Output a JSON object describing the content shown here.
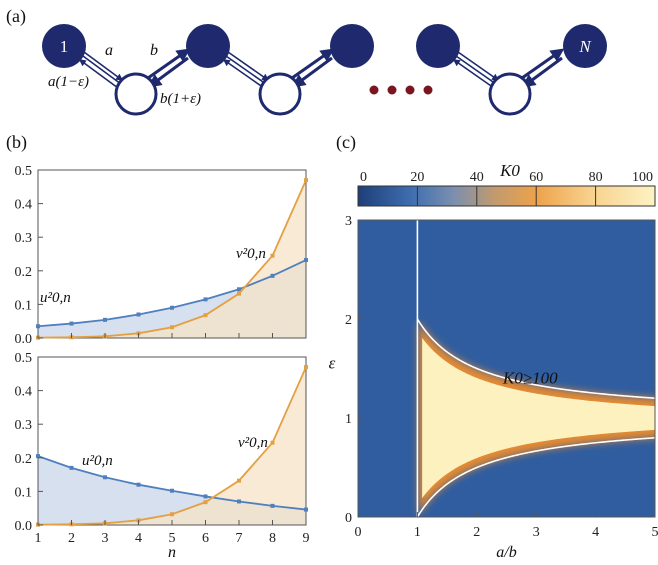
{
  "panel_labels": {
    "a": "(a)",
    "b": "(b)",
    "c": "(c)"
  },
  "colors": {
    "navy": "#1f2a6e",
    "blue_curve": "#4f7fbf",
    "orange_curve": "#e3a043",
    "blue_fill": "#c9d6ea",
    "orange_fill": "#f6e3c6",
    "heat_low": "#2f5da0",
    "heat_high": "#fdf1bf",
    "dots": "#7a1620"
  },
  "chain": {
    "first_node_label": "1",
    "last_node_label": "N",
    "hop_a": "a",
    "hop_b": "b",
    "hop_a_reverse": "a(1−ε)",
    "hop_b_reverse": "b(1+ε)"
  },
  "chart_data": [
    {
      "type": "area",
      "panel": "(b) top",
      "x": [
        1,
        2,
        3,
        4,
        5,
        6,
        7,
        8,
        9
      ],
      "ylim": [
        0,
        0.5
      ],
      "xlim": [
        1,
        9
      ],
      "yticks": [
        "0.0",
        "0.1",
        "0.2",
        "0.3",
        "0.4",
        "0.5"
      ],
      "series": [
        {
          "name": "u²0,n",
          "values": [
            0.035,
            0.043,
            0.054,
            0.07,
            0.09,
            0.115,
            0.145,
            0.185,
            0.232
          ]
        },
        {
          "name": "v²0,n",
          "values": [
            0.001,
            0.002,
            0.005,
            0.014,
            0.032,
            0.068,
            0.132,
            0.245,
            0.47
          ]
        }
      ]
    },
    {
      "type": "area",
      "panel": "(b) bottom",
      "x": [
        1,
        2,
        3,
        4,
        5,
        6,
        7,
        8,
        9
      ],
      "xlabel": "n",
      "ylim": [
        0,
        0.5
      ],
      "xlim": [
        1,
        9
      ],
      "xticks": [
        "1",
        "2",
        "3",
        "4",
        "5",
        "6",
        "7",
        "8",
        "9"
      ],
      "yticks": [
        "0.0",
        "0.1",
        "0.2",
        "0.3",
        "0.4",
        "0.5"
      ],
      "series": [
        {
          "name": "u²0,n",
          "values": [
            0.205,
            0.17,
            0.142,
            0.12,
            0.102,
            0.085,
            0.07,
            0.057,
            0.046
          ]
        },
        {
          "name": "v²0,n",
          "values": [
            0.001,
            0.002,
            0.005,
            0.014,
            0.032,
            0.068,
            0.132,
            0.245,
            0.47
          ]
        }
      ]
    },
    {
      "type": "heatmap",
      "panel": "(c)",
      "xlabel": "a/b",
      "ylabel": "ε",
      "xlim": [
        0,
        5
      ],
      "ylim": [
        0,
        3
      ],
      "xticks": [
        "0",
        "1",
        "2",
        "3",
        "4",
        "5"
      ],
      "yticks": [
        "0",
        "1",
        "2",
        "3"
      ],
      "colorbar": {
        "label": "K0",
        "range": [
          0,
          100
        ],
        "ticks": [
          "0",
          "20",
          "40",
          "60",
          "80",
          "100"
        ]
      },
      "annotation": "K0≥100",
      "boundaries": [
        "a/b = 1",
        "ε = 1 − b/a",
        "ε = 1 + b/a"
      ]
    }
  ]
}
